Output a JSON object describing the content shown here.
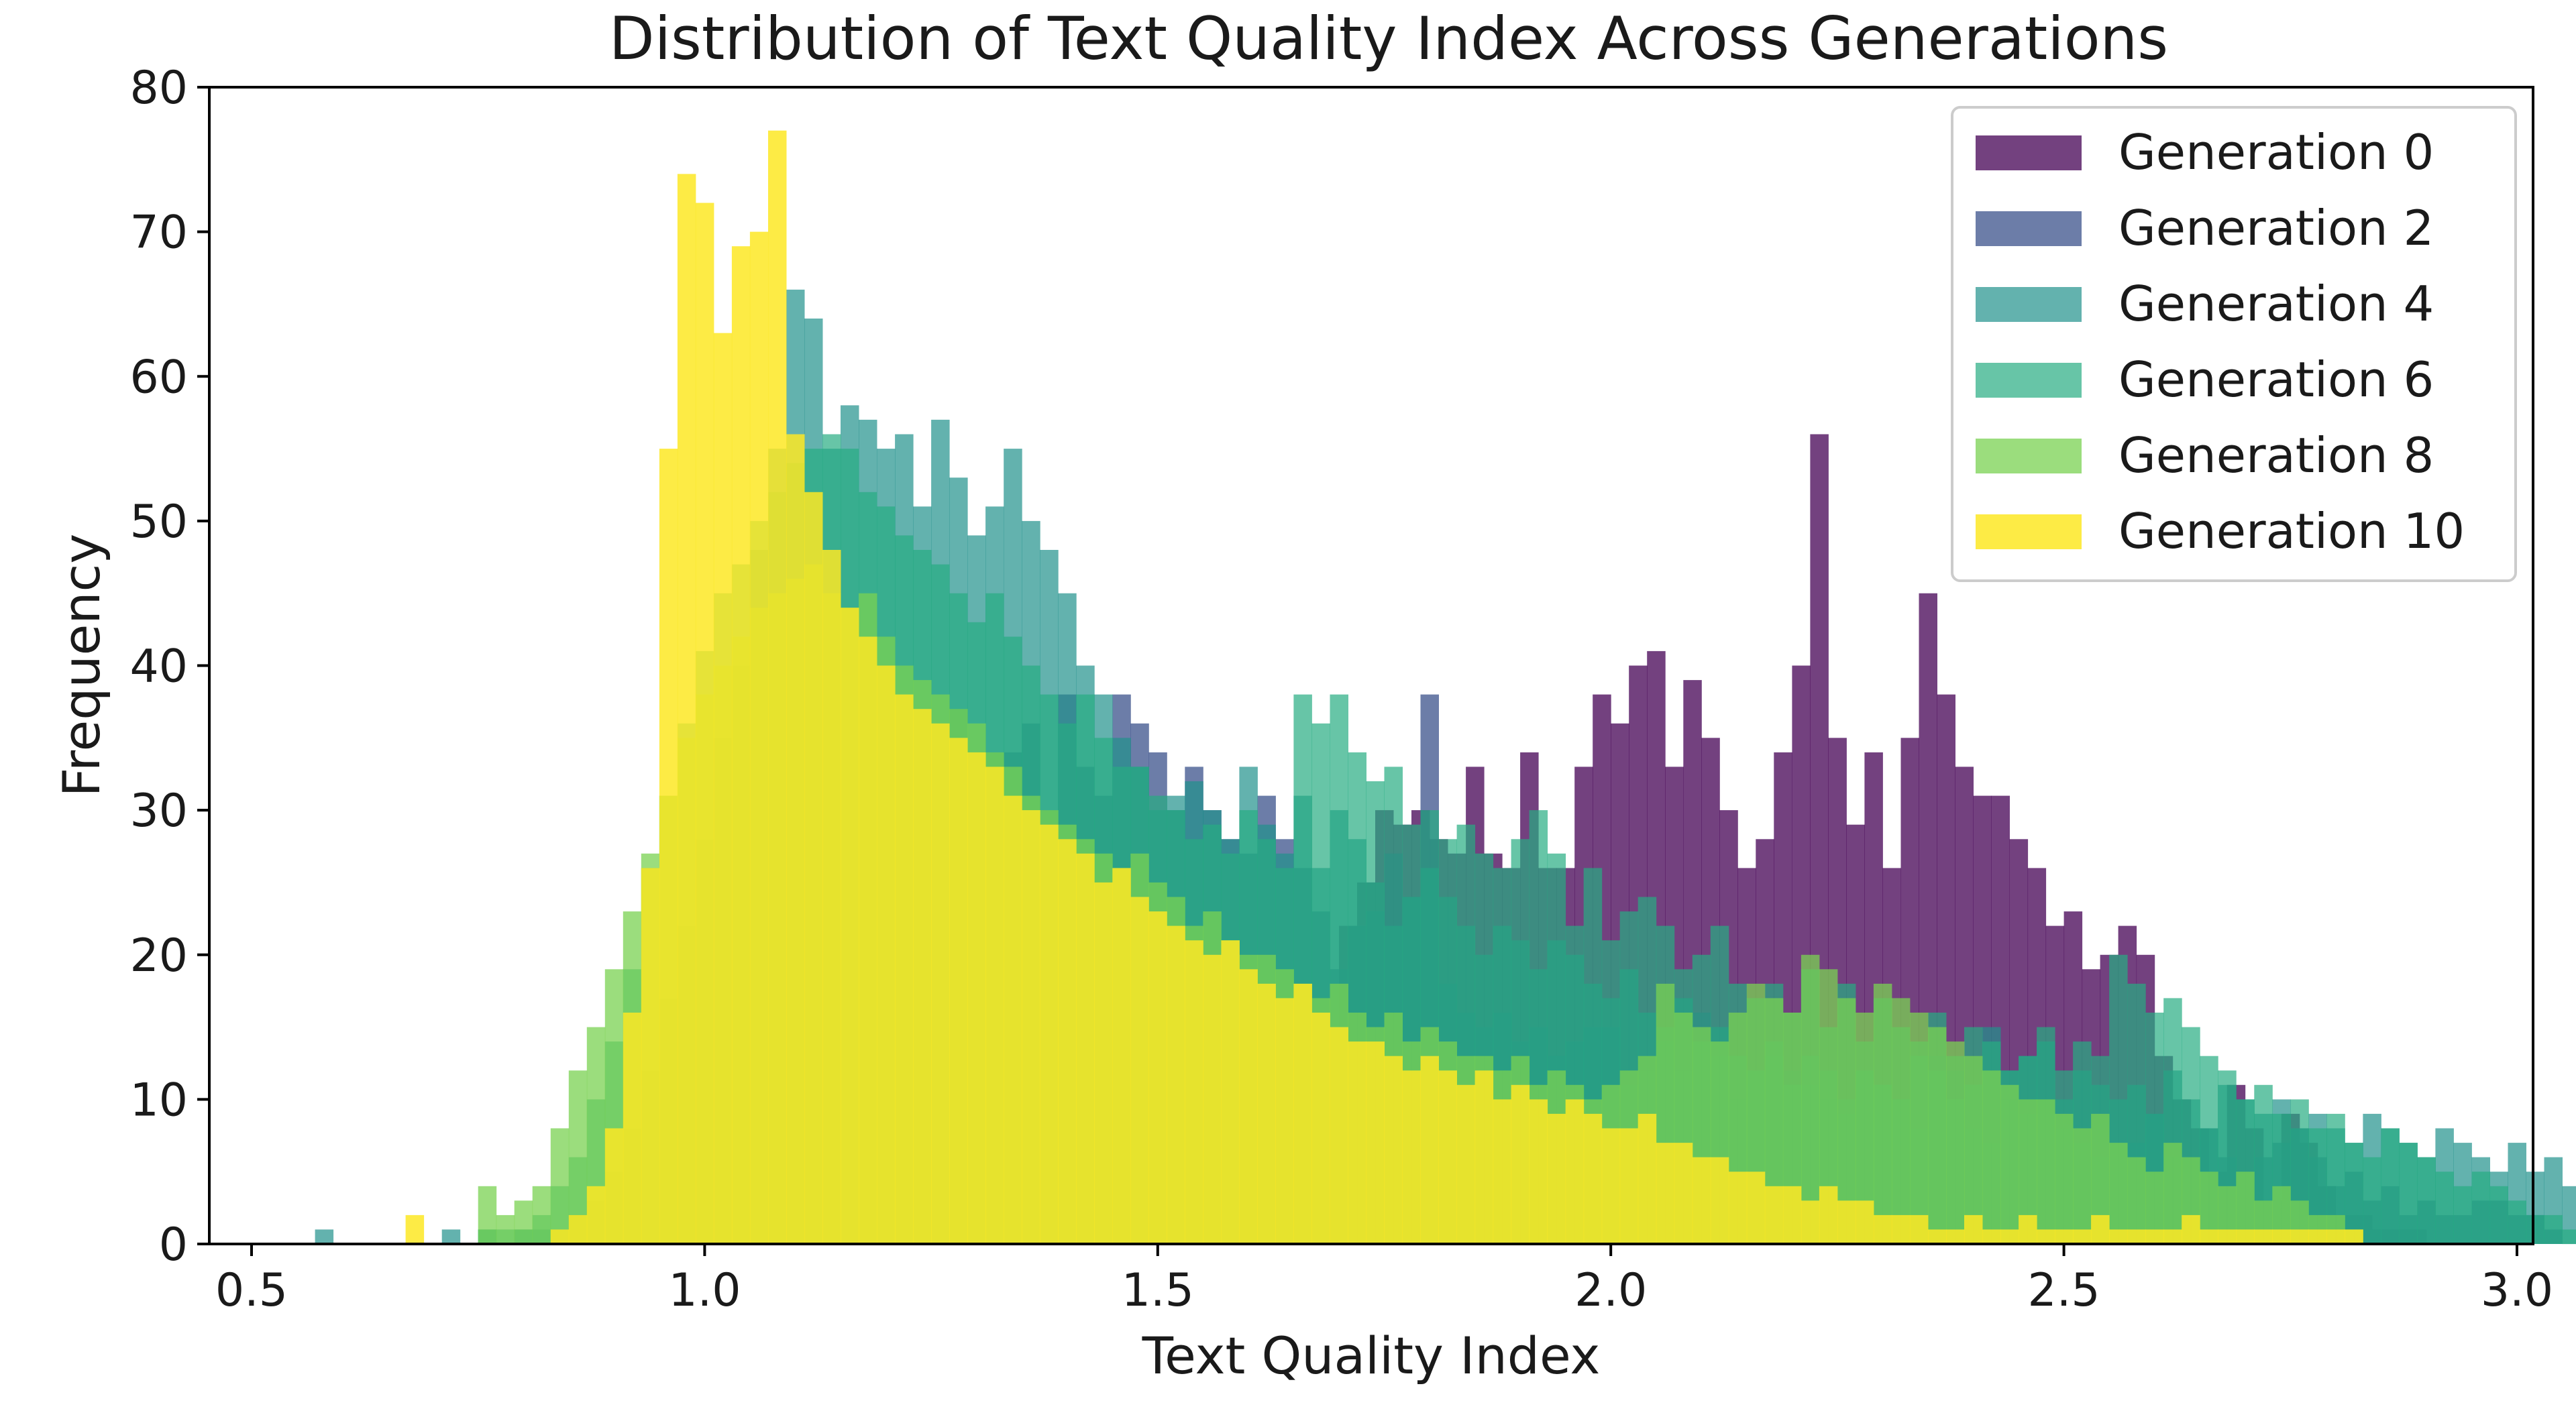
{
  "chart_data": {
    "type": "histogram",
    "title": "Distribution of Text Quality Index Across Generations",
    "xlabel": "Text Quality Index",
    "ylabel": "Frequency",
    "xlim": [
      0.5,
      3.0
    ],
    "ylim": [
      0,
      80
    ],
    "xticks": [
      0.5,
      1.0,
      1.5,
      2.0,
      2.5,
      3.0
    ],
    "xtick_labels": [
      "0.5",
      "1.0",
      "1.5",
      "2.0",
      "2.5",
      "3.0"
    ],
    "yticks": [
      0,
      10,
      20,
      30,
      40,
      50,
      60,
      70,
      80
    ],
    "ytick_labels": [
      "0",
      "10",
      "20",
      "30",
      "40",
      "50",
      "60",
      "70",
      "80"
    ],
    "grid": false,
    "legend_position": "top-right",
    "bins": {
      "start": 0.55,
      "end": 2.95,
      "width": 0.02
    },
    "series": [
      {
        "name": "Generation 0",
        "color": "#440154",
        "opacity": 0.75,
        "bin_start": 1.7,
        "bin_width": 0.02,
        "counts": [
          22,
          25,
          30,
          29,
          30,
          28,
          27,
          33,
          27,
          26,
          34,
          26,
          26,
          33,
          38,
          36,
          40,
          41,
          33,
          39,
          35,
          30,
          26,
          28,
          34,
          40,
          56,
          35,
          29,
          34,
          26,
          35,
          45,
          38,
          33,
          31,
          31,
          28,
          26,
          22,
          23,
          19,
          20,
          22,
          20,
          13,
          10,
          8,
          5,
          11,
          8,
          3,
          9,
          7,
          4,
          2,
          2,
          1,
          1,
          1,
          0,
          0,
          0,
          0,
          0,
          0,
          0,
          0,
          0,
          0,
          1
        ]
      },
      {
        "name": "Generation 2",
        "color": "#3b528b",
        "opacity": 0.75,
        "bin_start": 1.25,
        "bin_width": 0.02,
        "counts": [
          35,
          37,
          34,
          34,
          34,
          36,
          30,
          38,
          33,
          31,
          38,
          36,
          34,
          30,
          33,
          30,
          28,
          27,
          31,
          28,
          26,
          23,
          19,
          22,
          23,
          27,
          24,
          38,
          18,
          16,
          15,
          16,
          14,
          15,
          13,
          14,
          15,
          15,
          11,
          12,
          14,
          12,
          16,
          13,
          10,
          12,
          13,
          12,
          11,
          10,
          9,
          12,
          11,
          10,
          8,
          13,
          12,
          8,
          7,
          10,
          9,
          10,
          8,
          7,
          6,
          7,
          7,
          9,
          6,
          6,
          8,
          6,
          5,
          6,
          7,
          8,
          6,
          4,
          5,
          3,
          4,
          2,
          3,
          2,
          2,
          3,
          3,
          2,
          2,
          1
        ]
      },
      {
        "name": "Generation 4",
        "color": "#21918c",
        "opacity": 0.7,
        "bin_start": 0.55,
        "bin_width": 0.02,
        "counts": [
          0,
          1,
          0,
          0,
          0,
          0,
          0,
          0,
          1,
          0,
          1,
          0,
          1,
          1,
          1,
          2,
          3,
          5,
          8,
          12,
          17,
          22,
          28,
          35,
          40,
          48,
          55,
          66,
          64,
          55,
          58,
          57,
          55,
          56,
          51,
          57,
          53,
          49,
          51,
          55,
          50,
          48,
          45,
          40,
          38,
          35,
          33,
          30,
          31,
          32,
          30,
          28,
          33,
          29,
          27,
          31,
          26,
          30,
          28,
          25,
          22,
          24,
          26,
          24,
          22,
          20,
          22,
          21,
          19,
          21,
          20,
          18,
          17,
          19,
          16,
          15,
          17,
          14,
          15,
          13,
          12,
          14,
          11,
          13,
          12,
          10,
          12,
          11,
          10,
          13,
          12,
          10,
          11,
          15,
          12,
          13,
          14,
          10,
          12,
          11,
          10,
          11,
          9,
          12,
          10,
          8,
          11,
          10,
          9,
          10,
          8,
          9,
          8,
          7,
          9,
          8,
          7,
          6,
          8,
          7,
          6,
          5,
          7,
          5,
          6,
          4,
          5,
          3,
          4,
          3,
          2,
          2,
          1,
          1
        ]
      },
      {
        "name": "Generation 6",
        "color": "#27ad81",
        "opacity": 0.7,
        "bin_start": 0.75,
        "bin_width": 0.02,
        "counts": [
          1,
          1,
          1,
          2,
          4,
          6,
          10,
          14,
          19,
          26,
          31,
          36,
          41,
          45,
          47,
          50,
          52,
          54,
          55,
          56,
          55,
          52,
          51,
          49,
          48,
          47,
          45,
          43,
          45,
          42,
          40,
          38,
          36,
          38,
          35,
          33,
          33,
          31,
          30,
          28,
          29,
          27,
          30,
          28,
          26,
          38,
          36,
          38,
          34,
          32,
          33,
          29,
          30,
          28,
          29,
          27,
          26,
          28,
          30,
          27,
          22,
          26,
          21,
          23,
          24,
          22,
          19,
          20,
          22,
          18,
          17,
          18,
          16,
          19,
          15,
          18,
          14,
          17,
          15,
          14,
          16,
          13,
          15,
          14,
          12,
          13,
          15,
          12,
          14,
          13,
          20,
          18,
          16,
          17,
          15,
          13,
          12,
          10,
          11,
          9,
          10,
          8,
          9,
          7,
          6,
          8,
          7,
          6,
          5,
          4,
          5,
          4,
          3,
          2,
          2,
          1
        ]
      },
      {
        "name": "Generation 8",
        "color": "#7ad151",
        "opacity": 0.75,
        "bin_start": 0.75,
        "bin_width": 0.02,
        "counts": [
          4,
          2,
          3,
          4,
          8,
          12,
          15,
          19,
          23,
          27,
          31,
          35,
          38,
          40,
          42,
          44,
          45,
          46,
          47,
          45,
          44,
          45,
          42,
          40,
          39,
          38,
          37,
          36,
          34,
          33,
          31,
          30,
          29,
          28,
          27,
          26,
          27,
          25,
          24,
          22,
          23,
          21,
          20,
          20,
          19,
          18,
          17,
          18,
          16,
          15,
          16,
          14,
          15,
          14,
          13,
          13,
          12,
          13,
          11,
          12,
          11,
          10,
          11,
          12,
          13,
          18,
          16,
          15,
          14,
          16,
          18,
          17,
          16,
          20,
          19,
          17,
          16,
          18,
          17,
          16,
          15,
          14,
          13,
          12,
          11,
          10,
          10,
          9,
          8,
          9,
          7,
          6,
          5,
          7,
          6,
          5,
          4,
          5,
          3,
          4,
          3,
          2,
          2,
          1
        ]
      },
      {
        "name": "Generation 10",
        "color": "#fde725",
        "opacity": 0.85,
        "bin_start": 0.55,
        "bin_width": 0.02,
        "counts": [
          0,
          0,
          0,
          0,
          0,
          0,
          2,
          0,
          0,
          0,
          0,
          0,
          0,
          0,
          1,
          2,
          4,
          8,
          16,
          26,
          55,
          74,
          72,
          63,
          69,
          70,
          77,
          56,
          52,
          48,
          44,
          42,
          40,
          38,
          37,
          36,
          35,
          34,
          33,
          31,
          30,
          29,
          28,
          27,
          25,
          26,
          24,
          23,
          22,
          21,
          20,
          21,
          19,
          18,
          17,
          18,
          16,
          15,
          14,
          14,
          13,
          12,
          13,
          12,
          11,
          12,
          10,
          11,
          10,
          9,
          10,
          9,
          8,
          8,
          9,
          7,
          7,
          6,
          6,
          5,
          5,
          4,
          4,
          3,
          4,
          3,
          3,
          2,
          2,
          2,
          1,
          1,
          2,
          1,
          1,
          2,
          1,
          1,
          1,
          2,
          1,
          1,
          1,
          1,
          2,
          1,
          1,
          1,
          1,
          1,
          1,
          1,
          1,
          1
        ]
      }
    ]
  }
}
